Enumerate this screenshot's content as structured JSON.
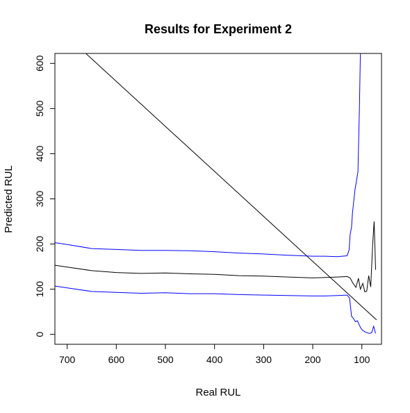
{
  "chart_data": {
    "type": "line",
    "title": "Results for Experiment 2",
    "xlabel": "Real RUL",
    "ylabel": "Predicted RUL",
    "xlim": [
      725,
      60
    ],
    "ylim": [
      -22,
      622
    ],
    "x_reversed": true,
    "grid": false,
    "x_ticks": [
      700,
      600,
      500,
      400,
      300,
      200,
      100
    ],
    "y_ticks": [
      0,
      100,
      200,
      300,
      400,
      500,
      600
    ],
    "colors": {
      "prediction": "#000000",
      "bounds": "#0000ff",
      "reference": "#000000"
    },
    "series": [
      {
        "role": "reference",
        "style": "line",
        "x": [
          662,
          70
        ],
        "y": [
          622,
          32
        ]
      },
      {
        "role": "prediction",
        "style": "line",
        "x": [
          725,
          700,
          650,
          600,
          550,
          500,
          450,
          400,
          350,
          300,
          250,
          200,
          175,
          150,
          130,
          124,
          118,
          112,
          107,
          103,
          98,
          94,
          90,
          86,
          82,
          78,
          75,
          72
        ],
        "y": [
          153,
          149,
          141,
          137,
          135,
          136,
          134,
          133,
          130,
          129,
          127,
          125,
          126,
          127,
          128,
          125,
          113,
          104,
          124,
          100,
          113,
          94,
          96,
          130,
          105,
          200,
          250,
          143
        ]
      },
      {
        "role": "upper-bound",
        "style": "line",
        "x": [
          725,
          700,
          650,
          600,
          550,
          500,
          450,
          400,
          350,
          300,
          250,
          200,
          175,
          150,
          130,
          126,
          124,
          121,
          119,
          116,
          114,
          111,
          108,
          105,
          103
        ],
        "y": [
          203,
          199,
          190,
          188,
          186,
          186,
          185,
          183,
          180,
          178,
          175,
          173,
          173,
          172,
          174,
          187,
          220,
          238,
          270,
          300,
          320,
          340,
          360,
          500,
          622
        ]
      },
      {
        "role": "lower-bound",
        "style": "line",
        "x": [
          725,
          700,
          650,
          600,
          550,
          500,
          450,
          400,
          350,
          300,
          250,
          200,
          175,
          150,
          130,
          125,
          121,
          117,
          113,
          109,
          105,
          101,
          97,
          93,
          88,
          84,
          80,
          76,
          72
        ],
        "y": [
          107,
          103,
          95,
          93,
          91,
          92,
          90,
          90,
          88,
          87,
          86,
          85,
          85,
          86,
          87,
          80,
          40,
          35,
          28,
          30,
          20,
          12,
          8,
          5,
          3,
          2,
          4,
          18,
          2
        ]
      }
    ]
  }
}
